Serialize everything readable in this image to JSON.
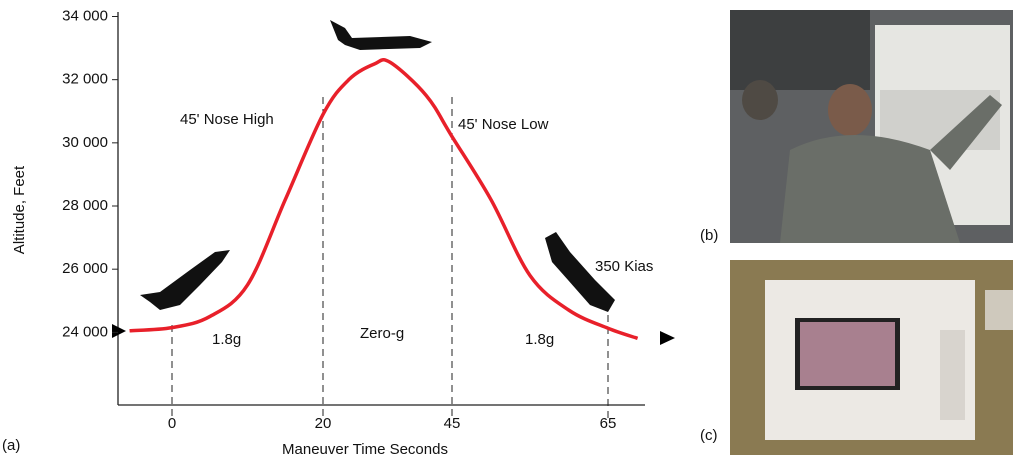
{
  "chart_data": {
    "type": "line",
    "ylabel": "Altitude, Feet",
    "xlabel": "Maneuver Time Seconds",
    "panel_labels": [
      "(a)",
      "(b)",
      "(c)"
    ],
    "annotations": [
      "45' Nose High",
      "45' Nose Low",
      "1.8g",
      "Zero-g",
      "1.8g",
      "350 Kias"
    ],
    "xlim": [
      -7,
      70
    ],
    "xticks": [
      0,
      20,
      45,
      65
    ],
    "ylim": [
      21700,
      34000
    ],
    "yticks": [
      {
        "value": 24000,
        "label": "24 000"
      },
      {
        "value": 26000,
        "label": "26 000"
      },
      {
        "value": 28000,
        "label": "28 000"
      },
      {
        "value": 30000,
        "label": "30 000"
      },
      {
        "value": 32000,
        "label": "32 000"
      },
      {
        "value": 34000,
        "label": "34 000"
      }
    ],
    "series": [
      {
        "color": "#e8202a",
        "x": [
          -5.5,
          0,
          5,
          10,
          15,
          20,
          25,
          30,
          33,
          40,
          45,
          50,
          55,
          60,
          65,
          69
        ],
        "values": [
          24050,
          24150,
          24500,
          25500,
          28200,
          30900,
          32000,
          32500,
          32550,
          31500,
          30200,
          28200,
          25800,
          24700,
          24130,
          23810
        ]
      }
    ]
  }
}
